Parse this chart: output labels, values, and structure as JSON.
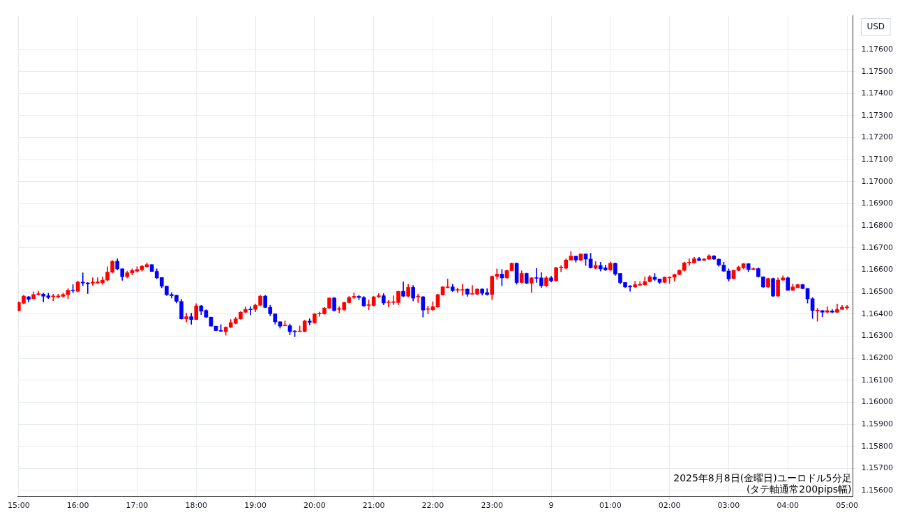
{
  "chart_data": {
    "type": "candlestick",
    "ylabel": "USD",
    "annotations": [
      "2025年8月8日(金曜日)ユーロドル5分足",
      "(タテ軸通常200pips幅)"
    ],
    "x": [
      "2025-08-08T15:00",
      "2025-08-08T15:05",
      "2025-08-08T15:10",
      "2025-08-08T15:15",
      "2025-08-08T15:20",
      "2025-08-08T15:25",
      "2025-08-08T15:30",
      "2025-08-08T15:35",
      "2025-08-08T15:40",
      "2025-08-08T15:45",
      "2025-08-08T15:50",
      "2025-08-08T15:55",
      "2025-08-08T16:00",
      "2025-08-08T16:05",
      "2025-08-08T16:10",
      "2025-08-08T16:15",
      "2025-08-08T16:20",
      "2025-08-08T16:25",
      "2025-08-08T16:30",
      "2025-08-08T16:35",
      "2025-08-08T16:40",
      "2025-08-08T16:45",
      "2025-08-08T16:50",
      "2025-08-08T16:55",
      "2025-08-08T17:00",
      "2025-08-08T17:05",
      "2025-08-08T17:10",
      "2025-08-08T17:15",
      "2025-08-08T17:20",
      "2025-08-08T17:25",
      "2025-08-08T17:30",
      "2025-08-08T17:35",
      "2025-08-08T17:40",
      "2025-08-08T17:45",
      "2025-08-08T17:50",
      "2025-08-08T17:55",
      "2025-08-08T18:00",
      "2025-08-08T18:05",
      "2025-08-08T18:10",
      "2025-08-08T18:15",
      "2025-08-08T18:20",
      "2025-08-08T18:25",
      "2025-08-08T18:30",
      "2025-08-08T18:35",
      "2025-08-08T18:40",
      "2025-08-08T18:45",
      "2025-08-08T18:50",
      "2025-08-08T18:55",
      "2025-08-08T19:00",
      "2025-08-08T19:05",
      "2025-08-08T19:10",
      "2025-08-08T19:15",
      "2025-08-08T19:20",
      "2025-08-08T19:25",
      "2025-08-08T19:30",
      "2025-08-08T19:35",
      "2025-08-08T19:40",
      "2025-08-08T19:45",
      "2025-08-08T19:50",
      "2025-08-08T19:55",
      "2025-08-08T20:00",
      "2025-08-08T20:05",
      "2025-08-08T20:10",
      "2025-08-08T20:15",
      "2025-08-08T20:20",
      "2025-08-08T20:25",
      "2025-08-08T20:30",
      "2025-08-08T20:35",
      "2025-08-08T20:40",
      "2025-08-08T20:45",
      "2025-08-08T20:50",
      "2025-08-08T20:55",
      "2025-08-08T21:00",
      "2025-08-08T21:05",
      "2025-08-08T21:10",
      "2025-08-08T21:15",
      "2025-08-08T21:20",
      "2025-08-08T21:25",
      "2025-08-08T21:30",
      "2025-08-08T21:35",
      "2025-08-08T21:40",
      "2025-08-08T21:45",
      "2025-08-08T21:50",
      "2025-08-08T21:55",
      "2025-08-08T22:00",
      "2025-08-08T22:05",
      "2025-08-08T22:10",
      "2025-08-08T22:15",
      "2025-08-08T22:20",
      "2025-08-08T22:25",
      "2025-08-08T22:30",
      "2025-08-08T22:35",
      "2025-08-08T22:40",
      "2025-08-08T22:45",
      "2025-08-08T22:50",
      "2025-08-08T22:55",
      "2025-08-08T23:00",
      "2025-08-08T23:05",
      "2025-08-08T23:10",
      "2025-08-08T23:15",
      "2025-08-08T23:20",
      "2025-08-08T23:25",
      "2025-08-08T23:30",
      "2025-08-08T23:35",
      "2025-08-08T23:40",
      "2025-08-08T23:45",
      "2025-08-08T23:50",
      "2025-08-08T23:55",
      "2025-08-09T00:00",
      "2025-08-09T00:05",
      "2025-08-09T00:10",
      "2025-08-09T00:15",
      "2025-08-09T00:20",
      "2025-08-09T00:25",
      "2025-08-09T00:30",
      "2025-08-09T00:35",
      "2025-08-09T00:40",
      "2025-08-09T00:45",
      "2025-08-09T00:50",
      "2025-08-09T00:55",
      "2025-08-09T01:00",
      "2025-08-09T01:05",
      "2025-08-09T01:10",
      "2025-08-09T01:15",
      "2025-08-09T01:20",
      "2025-08-09T01:25",
      "2025-08-09T01:30",
      "2025-08-09T01:35",
      "2025-08-09T01:40",
      "2025-08-09T01:45",
      "2025-08-09T01:50",
      "2025-08-09T01:55",
      "2025-08-09T02:00",
      "2025-08-09T02:05",
      "2025-08-09T02:10",
      "2025-08-09T02:15",
      "2025-08-09T02:20",
      "2025-08-09T02:25",
      "2025-08-09T02:30",
      "2025-08-09T02:35",
      "2025-08-09T02:40",
      "2025-08-09T02:45",
      "2025-08-09T02:50",
      "2025-08-09T02:55",
      "2025-08-09T03:00",
      "2025-08-09T03:05",
      "2025-08-09T03:10",
      "2025-08-09T03:15",
      "2025-08-09T03:20",
      "2025-08-09T03:25",
      "2025-08-09T03:30",
      "2025-08-09T03:35",
      "2025-08-09T03:40",
      "2025-08-09T03:45",
      "2025-08-09T03:50",
      "2025-08-09T03:55",
      "2025-08-09T04:00",
      "2025-08-09T04:05",
      "2025-08-09T04:10",
      "2025-08-09T04:15",
      "2025-08-09T04:20",
      "2025-08-09T04:25",
      "2025-08-09T04:30",
      "2025-08-09T04:35",
      "2025-08-09T04:40",
      "2025-08-09T04:45",
      "2025-08-09T04:50",
      "2025-08-09T04:55",
      "2025-08-09T05:00"
    ],
    "ohlc": [
      [
        1.16416,
        1.16455,
        1.16414,
        1.16452
      ],
      [
        1.16449,
        1.16485,
        1.16446,
        1.16481
      ],
      [
        1.16478,
        1.1648,
        1.16455,
        1.16467
      ],
      [
        1.1647,
        1.165,
        1.16468,
        1.16488
      ],
      [
        1.16488,
        1.16503,
        1.16485,
        1.16492
      ],
      [
        1.1649,
        1.16495,
        1.16455,
        1.16481
      ],
      [
        1.16483,
        1.16495,
        1.1647,
        1.16475
      ],
      [
        1.16478,
        1.1649,
        1.1646,
        1.16482
      ],
      [
        1.16477,
        1.1649,
        1.16472,
        1.16482
      ],
      [
        1.1648,
        1.16495,
        1.16475,
        1.16488
      ],
      [
        1.16488,
        1.16515,
        1.1647,
        1.16508
      ],
      [
        1.16508,
        1.16533,
        1.16497,
        1.16505
      ],
      [
        1.16503,
        1.1655,
        1.165,
        1.16544
      ],
      [
        1.16544,
        1.16587,
        1.16528,
        1.16541
      ],
      [
        1.16541,
        1.16543,
        1.16493,
        1.16537
      ],
      [
        1.16539,
        1.16565,
        1.1653,
        1.16544
      ],
      [
        1.16541,
        1.16565,
        1.16538,
        1.16546
      ],
      [
        1.16542,
        1.16568,
        1.16535,
        1.16554
      ],
      [
        1.16554,
        1.16615,
        1.1655,
        1.1659
      ],
      [
        1.1659,
        1.16642,
        1.16587,
        1.16639
      ],
      [
        1.16639,
        1.1665,
        1.166,
        1.16605
      ],
      [
        1.16605,
        1.16605,
        1.16553,
        1.16569
      ],
      [
        1.16569,
        1.16595,
        1.16563,
        1.16587
      ],
      [
        1.16587,
        1.16605,
        1.16577,
        1.16597
      ],
      [
        1.16595,
        1.16615,
        1.1659,
        1.16602
      ],
      [
        1.166,
        1.1662,
        1.16594,
        1.16617
      ],
      [
        1.16615,
        1.16632,
        1.16612,
        1.16624
      ],
      [
        1.16624,
        1.16624,
        1.16592,
        1.16593
      ],
      [
        1.16593,
        1.16605,
        1.16561,
        1.16564
      ],
      [
        1.16566,
        1.16566,
        1.16519,
        1.16526
      ],
      [
        1.16526,
        1.16526,
        1.16483,
        1.16488
      ],
      [
        1.16488,
        1.16497,
        1.16472,
        1.16483
      ],
      [
        1.16485,
        1.16487,
        1.1645,
        1.16457
      ],
      [
        1.16457,
        1.16467,
        1.16377,
        1.16378
      ],
      [
        1.16378,
        1.16404,
        1.16364,
        1.16388
      ],
      [
        1.16388,
        1.16404,
        1.16353,
        1.16375
      ],
      [
        1.16375,
        1.16447,
        1.16374,
        1.16437
      ],
      [
        1.16437,
        1.1644,
        1.16397,
        1.16413
      ],
      [
        1.16416,
        1.1642,
        1.16384,
        1.16386
      ],
      [
        1.16386,
        1.16386,
        1.16345,
        1.16345
      ],
      [
        1.16345,
        1.16345,
        1.16324,
        1.16325
      ],
      [
        1.16325,
        1.16352,
        1.1632,
        1.16322
      ],
      [
        1.1632,
        1.16343,
        1.16304,
        1.1634
      ],
      [
        1.1634,
        1.16375,
        1.16338,
        1.16361
      ],
      [
        1.16358,
        1.16385,
        1.16355,
        1.16378
      ],
      [
        1.16378,
        1.16412,
        1.16376,
        1.16408
      ],
      [
        1.16408,
        1.16433,
        1.16405,
        1.16421
      ],
      [
        1.16421,
        1.16434,
        1.16396,
        1.16419
      ],
      [
        1.16421,
        1.16446,
        1.1641,
        1.1644
      ],
      [
        1.1644,
        1.16485,
        1.16437,
        1.16481
      ],
      [
        1.16481,
        1.16485,
        1.16428,
        1.1643
      ],
      [
        1.1643,
        1.1644,
        1.16392,
        1.16401
      ],
      [
        1.16401,
        1.16401,
        1.16354,
        1.16365
      ],
      [
        1.16365,
        1.16365,
        1.16336,
        1.16345
      ],
      [
        1.16347,
        1.16369,
        1.16347,
        1.1635
      ],
      [
        1.16347,
        1.16355,
        1.16306,
        1.1632
      ],
      [
        1.16322,
        1.16325,
        1.16297,
        1.1632
      ],
      [
        1.1632,
        1.16346,
        1.1632,
        1.16323
      ],
      [
        1.16321,
        1.16372,
        1.16319,
        1.16368
      ],
      [
        1.16368,
        1.16379,
        1.1635,
        1.16362
      ],
      [
        1.1636,
        1.16402,
        1.16358,
        1.16401
      ],
      [
        1.16401,
        1.16409,
        1.16389,
        1.16404
      ],
      [
        1.16401,
        1.1643,
        1.16399,
        1.16427
      ],
      [
        1.16427,
        1.16473,
        1.16425,
        1.16473
      ],
      [
        1.16473,
        1.16475,
        1.16413,
        1.16416
      ],
      [
        1.16421,
        1.16434,
        1.16406,
        1.16425
      ],
      [
        1.1642,
        1.16455,
        1.16415,
        1.16452
      ],
      [
        1.16452,
        1.1648,
        1.1645,
        1.16475
      ],
      [
        1.16475,
        1.16496,
        1.1647,
        1.1648
      ],
      [
        1.1648,
        1.16485,
        1.16464,
        1.16475
      ],
      [
        1.16475,
        1.1648,
        1.16434,
        1.16437
      ],
      [
        1.16439,
        1.16464,
        1.16419,
        1.16442
      ],
      [
        1.16439,
        1.1648,
        1.16436,
        1.16478
      ],
      [
        1.16478,
        1.16493,
        1.16475,
        1.16483
      ],
      [
        1.16483,
        1.16493,
        1.16442,
        1.1645
      ],
      [
        1.16452,
        1.16462,
        1.16432,
        1.16455
      ],
      [
        1.16452,
        1.16483,
        1.16442,
        1.16456
      ],
      [
        1.16452,
        1.16503,
        1.16442,
        1.16503
      ],
      [
        1.16503,
        1.16546,
        1.16478,
        1.16481
      ],
      [
        1.16481,
        1.16534,
        1.16478,
        1.16521
      ],
      [
        1.16521,
        1.1653,
        1.16459,
        1.16472
      ],
      [
        1.16478,
        1.16491,
        1.16452,
        1.16481
      ],
      [
        1.16478,
        1.1648,
        1.16386,
        1.16418
      ],
      [
        1.16421,
        1.16436,
        1.16401,
        1.16423
      ],
      [
        1.16419,
        1.16456,
        1.16416,
        1.16434
      ],
      [
        1.16432,
        1.1649,
        1.1643,
        1.16488
      ],
      [
        1.16487,
        1.16525,
        1.16485,
        1.16523
      ],
      [
        1.1652,
        1.16559,
        1.16518,
        1.16523
      ],
      [
        1.16523,
        1.16535,
        1.16502,
        1.16506
      ],
      [
        1.16508,
        1.16518,
        1.16497,
        1.1651
      ],
      [
        1.16508,
        1.16536,
        1.16485,
        1.16511
      ],
      [
        1.16513,
        1.16515,
        1.1648,
        1.1649
      ],
      [
        1.1649,
        1.1653,
        1.16488,
        1.16493
      ],
      [
        1.1649,
        1.16515,
        1.16488,
        1.16513
      ],
      [
        1.16513,
        1.16515,
        1.16486,
        1.16494
      ],
      [
        1.16497,
        1.16515,
        1.16485,
        1.16489
      ],
      [
        1.16489,
        1.16573,
        1.16465,
        1.16571
      ],
      [
        1.16571,
        1.16605,
        1.16557,
        1.16581
      ],
      [
        1.16581,
        1.16602,
        1.16528,
        1.16564
      ],
      [
        1.16564,
        1.166,
        1.16562,
        1.16597
      ],
      [
        1.16597,
        1.16632,
        1.16595,
        1.1663
      ],
      [
        1.1663,
        1.16632,
        1.16535,
        1.16543
      ],
      [
        1.16543,
        1.16596,
        1.16541,
        1.16584
      ],
      [
        1.16584,
        1.16586,
        1.16537,
        1.1654
      ],
      [
        1.1654,
        1.16566,
        1.16497,
        1.16564
      ],
      [
        1.16564,
        1.16607,
        1.16543,
        1.16562
      ],
      [
        1.16564,
        1.16589,
        1.1652,
        1.16528
      ],
      [
        1.16528,
        1.16571,
        1.16524,
        1.16564
      ],
      [
        1.16564,
        1.16571,
        1.16545,
        1.16551
      ],
      [
        1.16551,
        1.16612,
        1.16549,
        1.1661
      ],
      [
        1.1661,
        1.1662,
        1.16592,
        1.16613
      ],
      [
        1.16608,
        1.1665,
        1.16605,
        1.16645
      ],
      [
        1.16645,
        1.16683,
        1.16643,
        1.16663
      ],
      [
        1.16663,
        1.16663,
        1.16635,
        1.16645
      ],
      [
        1.16645,
        1.16673,
        1.1664,
        1.16673
      ],
      [
        1.16673,
        1.16673,
        1.1662,
        1.16649
      ],
      [
        1.16649,
        1.16676,
        1.16608,
        1.1661
      ],
      [
        1.16608,
        1.16638,
        1.16605,
        1.1662
      ],
      [
        1.1662,
        1.16635,
        1.16595,
        1.16605
      ],
      [
        1.1661,
        1.16622,
        1.16597,
        1.166
      ],
      [
        1.166,
        1.16636,
        1.16597,
        1.1663
      ],
      [
        1.1663,
        1.16632,
        1.16575,
        1.16581
      ],
      [
        1.16584,
        1.16584,
        1.16536,
        1.16543
      ],
      [
        1.16543,
        1.16543,
        1.1652,
        1.16523
      ],
      [
        1.16526,
        1.1653,
        1.16503,
        1.16523
      ],
      [
        1.16523,
        1.16548,
        1.1652,
        1.16533
      ],
      [
        1.16531,
        1.16547,
        1.16528,
        1.16534
      ],
      [
        1.16533,
        1.16569,
        1.1653,
        1.16547
      ],
      [
        1.16547,
        1.16575,
        1.16545,
        1.16569
      ],
      [
        1.16567,
        1.16584,
        1.16552,
        1.16557
      ],
      [
        1.16559,
        1.16559,
        1.16538,
        1.16544
      ],
      [
        1.16544,
        1.16569,
        1.16542,
        1.16567
      ],
      [
        1.16564,
        1.16569,
        1.16538,
        1.16567
      ],
      [
        1.16567,
        1.16582,
        1.16549,
        1.16579
      ],
      [
        1.16579,
        1.16601,
        1.16577,
        1.16598
      ],
      [
        1.16598,
        1.16636,
        1.16595,
        1.16632
      ],
      [
        1.16632,
        1.16651,
        1.1662,
        1.16635
      ],
      [
        1.16632,
        1.16657,
        1.1663,
        1.16651
      ],
      [
        1.16651,
        1.16657,
        1.16641,
        1.16643
      ],
      [
        1.16644,
        1.16653,
        1.16642,
        1.16649
      ],
      [
        1.16649,
        1.16669,
        1.16647,
        1.16664
      ],
      [
        1.16664,
        1.16666,
        1.16647,
        1.16649
      ],
      [
        1.16649,
        1.1665,
        1.16617,
        1.16622
      ],
      [
        1.16622,
        1.16635,
        1.16593,
        1.16595
      ],
      [
        1.16595,
        1.16605,
        1.16549,
        1.16559
      ],
      [
        1.16561,
        1.166,
        1.16559,
        1.16598
      ],
      [
        1.16598,
        1.16618,
        1.16596,
        1.16612
      ],
      [
        1.1661,
        1.1663,
        1.16605,
        1.16628
      ],
      [
        1.16628,
        1.1663,
        1.16592,
        1.16602
      ],
      [
        1.16602,
        1.1661,
        1.166,
        1.16606
      ],
      [
        1.16606,
        1.1661,
        1.16567,
        1.16569
      ],
      [
        1.16569,
        1.16569,
        1.1652,
        1.16523
      ],
      [
        1.16523,
        1.16563,
        1.1652,
        1.16561
      ],
      [
        1.16561,
        1.16563,
        1.16479,
        1.16482
      ],
      [
        1.16482,
        1.16564,
        1.16479,
        1.16554
      ],
      [
        1.16554,
        1.16574,
        1.16552,
        1.16564
      ],
      [
        1.16564,
        1.16569,
        1.16506,
        1.16508
      ],
      [
        1.16508,
        1.16536,
        1.16506,
        1.16523
      ],
      [
        1.1652,
        1.16536,
        1.16518,
        1.16533
      ],
      [
        1.16533,
        1.16535,
        1.16514,
        1.16516
      ],
      [
        1.16516,
        1.16516,
        1.16449,
        1.16469
      ],
      [
        1.16469,
        1.16475,
        1.1638,
        1.16416
      ],
      [
        1.16414,
        1.16426,
        1.16367,
        1.16416
      ],
      [
        1.16416,
        1.16416,
        1.16387,
        1.16408
      ],
      [
        1.16408,
        1.16434,
        1.16406,
        1.16416
      ],
      [
        1.16414,
        1.16421,
        1.16406,
        1.16408
      ],
      [
        1.16408,
        1.16446,
        1.16406,
        1.16421
      ],
      [
        1.16421,
        1.16439,
        1.16421,
        1.16431
      ],
      [
        1.16428,
        1.16439,
        1.16421,
        1.16432
      ]
    ],
    "colors": [
      "#ff0000",
      "#ff0000",
      "#0000ff",
      "#ff0000",
      "#ff0000",
      "#0000ff",
      "#0000ff",
      "#ff0000",
      "#ff0000",
      "#ff0000",
      "#ff0000",
      "#0000ff",
      "#ff0000",
      "#0000ff",
      "#0000ff",
      "#ff0000",
      "#ff0000",
      "#ff0000",
      "#ff0000",
      "#ff0000",
      "#0000ff",
      "#0000ff",
      "#ff0000",
      "#ff0000",
      "#ff0000",
      "#ff0000",
      "#ff0000",
      "#0000ff",
      "#0000ff",
      "#0000ff",
      "#0000ff",
      "#0000ff",
      "#0000ff",
      "#0000ff",
      "#ff0000",
      "#0000ff",
      "#ff0000",
      "#0000ff",
      "#0000ff",
      "#0000ff",
      "#0000ff",
      "#0000ff",
      "#ff0000",
      "#ff0000",
      "#ff0000",
      "#ff0000",
      "#ff0000",
      "#0000ff",
      "#ff0000",
      "#ff0000",
      "#0000ff",
      "#0000ff",
      "#0000ff",
      "#0000ff",
      "#ff0000",
      "#0000ff",
      "#0000ff",
      "#ff0000",
      "#ff0000",
      "#0000ff",
      "#ff0000",
      "#ff0000",
      "#ff0000",
      "#ff0000",
      "#0000ff",
      "#ff0000",
      "#ff0000",
      "#ff0000",
      "#ff0000",
      "#0000ff",
      "#0000ff",
      "#ff0000",
      "#ff0000",
      "#ff0000",
      "#0000ff",
      "#ff0000",
      "#ff0000",
      "#ff0000",
      "#0000ff",
      "#ff0000",
      "#0000ff",
      "#ff0000",
      "#0000ff",
      "#ff0000",
      "#ff0000",
      "#ff0000",
      "#ff0000",
      "#ff0000",
      "#0000ff",
      "#ff0000",
      "#ff0000",
      "#0000ff",
      "#ff0000",
      "#ff0000",
      "#0000ff",
      "#0000ff",
      "#ff0000",
      "#ff0000",
      "#0000ff",
      "#ff0000",
      "#ff0000",
      "#0000ff",
      "#ff0000",
      "#0000ff",
      "#ff0000",
      "#0000ff",
      "#0000ff",
      "#ff0000",
      "#0000ff",
      "#ff0000",
      "#ff0000",
      "#ff0000",
      "#ff0000",
      "#0000ff",
      "#ff0000",
      "#0000ff",
      "#0000ff",
      "#ff0000",
      "#0000ff",
      "#0000ff",
      "#ff0000",
      "#0000ff",
      "#0000ff",
      "#0000ff",
      "#0000ff",
      "#ff0000",
      "#ff0000",
      "#ff0000",
      "#ff0000",
      "#0000ff",
      "#0000ff",
      "#ff0000",
      "#ff0000",
      "#ff0000",
      "#ff0000",
      "#ff0000",
      "#ff0000",
      "#ff0000",
      "#0000ff",
      "#ff0000",
      "#ff0000",
      "#0000ff",
      "#0000ff",
      "#0000ff",
      "#0000ff",
      "#ff0000",
      "#ff0000",
      "#ff0000",
      "#0000ff",
      "#ff0000",
      "#0000ff",
      "#0000ff",
      "#ff0000",
      "#0000ff",
      "#ff0000",
      "#ff0000",
      "#0000ff",
      "#ff0000",
      "#ff0000",
      "#0000ff",
      "#0000ff",
      "#0000ff",
      "#ff0000",
      "#0000ff",
      "#ff0000",
      "#0000ff",
      "#ff0000",
      "#ff0000",
      "#ff0000"
    ],
    "xlim": [
      "2025-08-08T14:59",
      "2025-08-09T05:06"
    ],
    "xticks": [
      {
        "value": "2025-08-08T15:00",
        "label": "15:00"
      },
      {
        "value": "2025-08-08T16:00",
        "label": "16:00"
      },
      {
        "value": "2025-08-08T17:00",
        "label": "17:00"
      },
      {
        "value": "2025-08-08T18:00",
        "label": "18:00"
      },
      {
        "value": "2025-08-08T19:00",
        "label": "19:00"
      },
      {
        "value": "2025-08-08T20:00",
        "label": "20:00"
      },
      {
        "value": "2025-08-08T21:00",
        "label": "21:00"
      },
      {
        "value": "2025-08-08T22:00",
        "label": "22:00"
      },
      {
        "value": "2025-08-08T23:00",
        "label": "23:00"
      },
      {
        "value": "2025-08-09T00:00",
        "label": "9"
      },
      {
        "value": "2025-08-09T01:00",
        "label": "01:00"
      },
      {
        "value": "2025-08-09T02:00",
        "label": "02:00"
      },
      {
        "value": "2025-08-09T03:00",
        "label": "03:00"
      },
      {
        "value": "2025-08-09T04:00",
        "label": "04:00"
      },
      {
        "value": "2025-08-09T05:00",
        "label": "05:00"
      }
    ],
    "ylim": [
      1.15572,
      1.17753
    ],
    "yticks": [
      {
        "value": 1.156,
        "label": "1.15600"
      },
      {
        "value": 1.157,
        "label": "1.15700"
      },
      {
        "value": 1.158,
        "label": "1.15800"
      },
      {
        "value": 1.159,
        "label": "1.15900"
      },
      {
        "value": 1.16,
        "label": "1.16000"
      },
      {
        "value": 1.161,
        "label": "1.16100"
      },
      {
        "value": 1.162,
        "label": "1.16200"
      },
      {
        "value": 1.163,
        "label": "1.16300"
      },
      {
        "value": 1.164,
        "label": "1.16400"
      },
      {
        "value": 1.165,
        "label": "1.16500"
      },
      {
        "value": 1.166,
        "label": "1.16600"
      },
      {
        "value": 1.167,
        "label": "1.16700"
      },
      {
        "value": 1.168,
        "label": "1.16800"
      },
      {
        "value": 1.169,
        "label": "1.16900"
      },
      {
        "value": 1.17,
        "label": "1.17000"
      },
      {
        "value": 1.171,
        "label": "1.17100"
      },
      {
        "value": 1.172,
        "label": "1.17200"
      },
      {
        "value": 1.173,
        "label": "1.17300"
      },
      {
        "value": 1.174,
        "label": "1.17400"
      },
      {
        "value": 1.175,
        "label": "1.17500"
      },
      {
        "value": 1.176,
        "label": "1.17600"
      }
    ],
    "grid": true
  }
}
